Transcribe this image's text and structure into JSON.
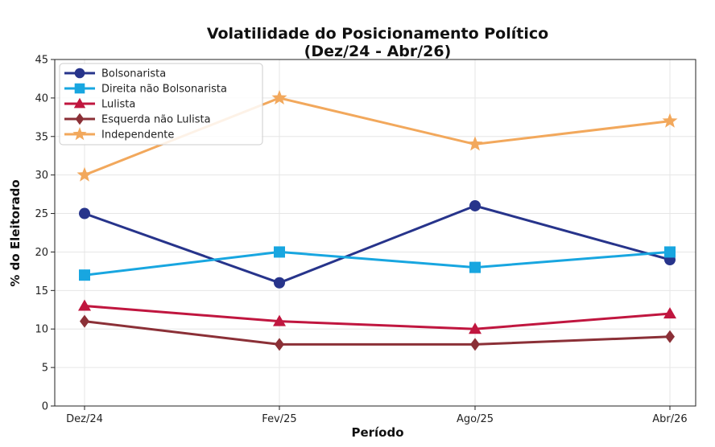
{
  "chart_data": {
    "type": "line",
    "title": "Volatilidade do Posicionamento Político",
    "subtitle": "(Dez/24 - Abr/26)",
    "xlabel": "Período",
    "ylabel": "% do Eleitorado",
    "categories": [
      "Dez/24",
      "Fev/25",
      "Ago/25",
      "Abr/26"
    ],
    "ylim": [
      0,
      45
    ],
    "yticks": [
      0,
      5,
      10,
      15,
      20,
      25,
      30,
      35,
      40,
      45
    ],
    "grid": true,
    "legend_position": "top-left",
    "series": [
      {
        "name": "Bolsonarista",
        "values": [
          25,
          16,
          26,
          19
        ],
        "color": "#27348b",
        "marker": "circle"
      },
      {
        "name": "Direita não Bolsonarista",
        "values": [
          17,
          20,
          18,
          20
        ],
        "color": "#18a6e0",
        "marker": "square"
      },
      {
        "name": "Lulista",
        "values": [
          13,
          11,
          10,
          12
        ],
        "color": "#c0163f",
        "marker": "triangle"
      },
      {
        "name": "Esquerda não Lulista",
        "values": [
          11,
          8,
          8,
          9
        ],
        "color": "#8b3037",
        "marker": "diamond"
      },
      {
        "name": "Independente",
        "values": [
          30,
          40,
          34,
          37
        ],
        "color": "#f2a85c",
        "marker": "star"
      }
    ]
  }
}
